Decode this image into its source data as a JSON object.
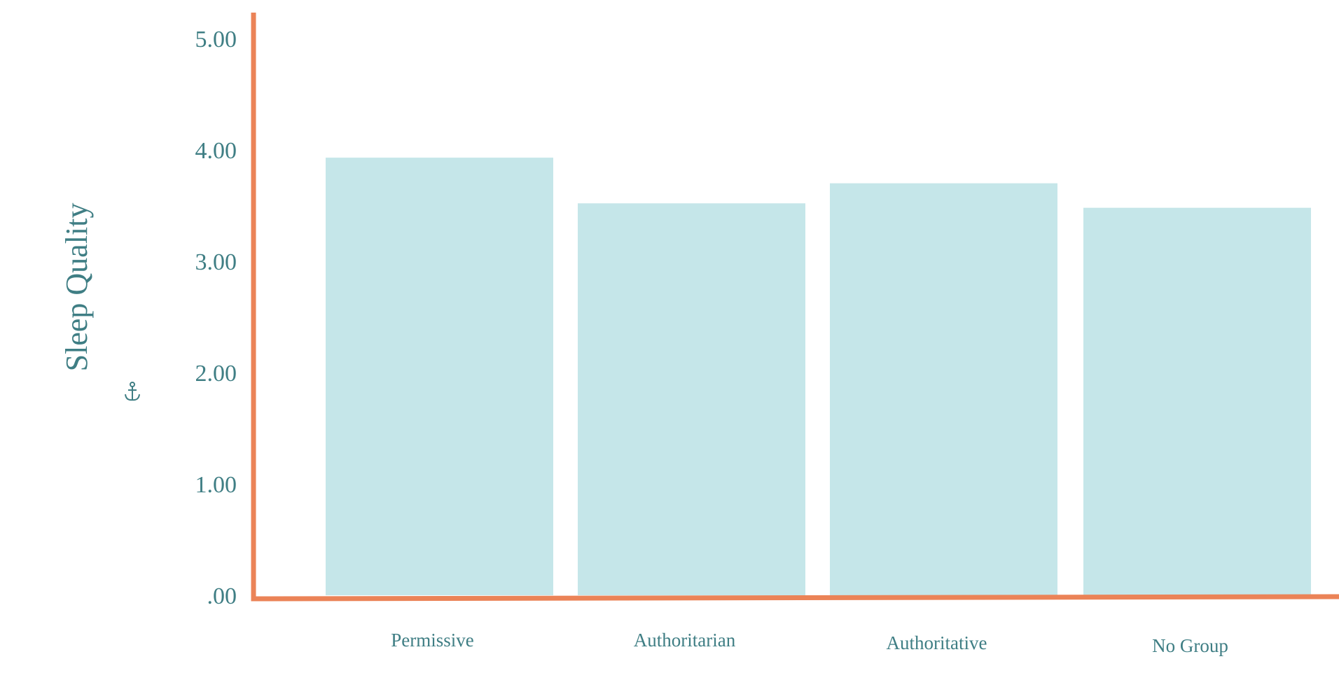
{
  "chart_data": {
    "type": "bar",
    "title": "",
    "xlabel": "",
    "ylabel": "Sleep Quality",
    "categories": [
      "Permissive",
      "Authoritarian",
      "Authoritative",
      "No Group"
    ],
    "values": [
      3.93,
      3.52,
      3.7,
      3.48
    ],
    "ylim": [
      0,
      5
    ],
    "yticks": [
      ".00",
      "1.00",
      "2.00",
      "3.00",
      "4.00",
      "5.00"
    ],
    "grid": false,
    "legend": "none",
    "colors": {
      "bar": "#c5e6e9",
      "axis": "#eb8357",
      "text": "#3f7e84"
    },
    "icons": {
      "ylabel_marker": "anchor-icon"
    }
  }
}
